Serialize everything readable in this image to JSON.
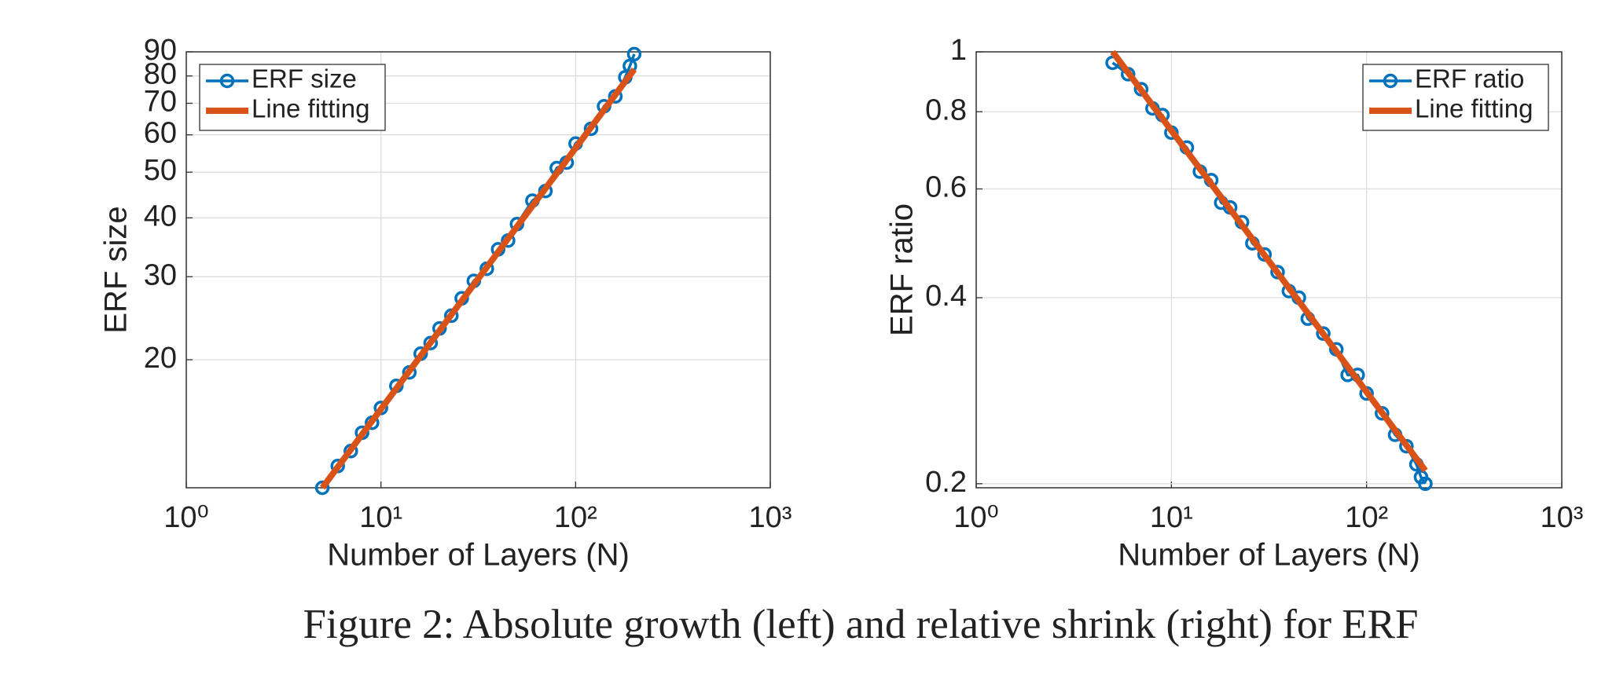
{
  "chart_data": [
    {
      "type": "line",
      "xlabel": "Number of Layers (N)",
      "ylabel": "ERF size",
      "xscale": "log",
      "yscale": "log",
      "grid": true,
      "legend": "upper left",
      "xlim": [
        1,
        1000
      ],
      "xticks": [
        {
          "value": 1,
          "label": "10⁰"
        },
        {
          "value": 10,
          "label": "10¹"
        },
        {
          "value": 100,
          "label": "10²"
        },
        {
          "value": 1000,
          "label": "10³"
        }
      ],
      "ylim": [
        10.7,
        90
      ],
      "yticks": [
        20,
        30,
        40,
        50,
        60,
        70,
        80,
        90
      ],
      "series": [
        {
          "name": "ERF size",
          "color": "#0072BD",
          "marker": "o",
          "x": [
            5,
            6,
            7,
            8,
            9,
            10,
            12,
            14,
            16,
            18,
            20,
            23,
            26,
            30,
            35,
            40,
            45,
            50,
            60,
            70,
            80,
            90,
            100,
            120,
            140,
            160,
            180,
            190,
            200
          ],
          "values": [
            10.7,
            11.9,
            12.8,
            14.0,
            14.7,
            15.8,
            17.6,
            18.8,
            20.6,
            21.7,
            23.3,
            24.8,
            27.0,
            29.4,
            31.2,
            34.3,
            35.8,
            38.8,
            43.5,
            45.6,
            51.0,
            52.4,
            57.5,
            61.8,
            69.0,
            72.4,
            79.5,
            84.0,
            89.0
          ]
        },
        {
          "name": "Line fitting",
          "color": "#D95319",
          "x": [
            5,
            200
          ],
          "values": [
            10.7,
            82.6
          ]
        }
      ]
    },
    {
      "type": "line",
      "xlabel": "Number of Layers (N)",
      "ylabel": "ERF ratio",
      "xscale": "log",
      "yscale": "log",
      "grid": true,
      "legend": "upper right",
      "xlim": [
        1,
        1000
      ],
      "xticks": [
        {
          "value": 1,
          "label": "10⁰"
        },
        {
          "value": 10,
          "label": "10¹"
        },
        {
          "value": 100,
          "label": "10²"
        },
        {
          "value": 1000,
          "label": "10³"
        }
      ],
      "ylim": [
        0.197,
        1
      ],
      "yticks": [
        0.2,
        0.4,
        0.6,
        0.8,
        1
      ],
      "series": [
        {
          "name": "ERF ratio",
          "color": "#0072BD",
          "marker": "o",
          "x": [
            5,
            6,
            7,
            8,
            9,
            10,
            12,
            14,
            16,
            18,
            20,
            23,
            26,
            30,
            35,
            40,
            45,
            50,
            60,
            70,
            80,
            90,
            100,
            120,
            140,
            160,
            180,
            190,
            200
          ],
          "values": [
            0.96,
            0.92,
            0.87,
            0.81,
            0.79,
            0.74,
            0.7,
            0.64,
            0.62,
            0.57,
            0.56,
            0.53,
            0.49,
            0.47,
            0.44,
            0.41,
            0.4,
            0.37,
            0.35,
            0.33,
            0.3,
            0.3,
            0.28,
            0.26,
            0.24,
            0.23,
            0.215,
            0.205,
            0.2
          ]
        },
        {
          "name": "Line fitting",
          "color": "#D95319",
          "x": [
            5,
            200
          ],
          "values": [
            1,
            0.21
          ]
        }
      ]
    }
  ],
  "caption": "Figure 2: Absolute growth (left) and relative shrink (right) for ERF"
}
